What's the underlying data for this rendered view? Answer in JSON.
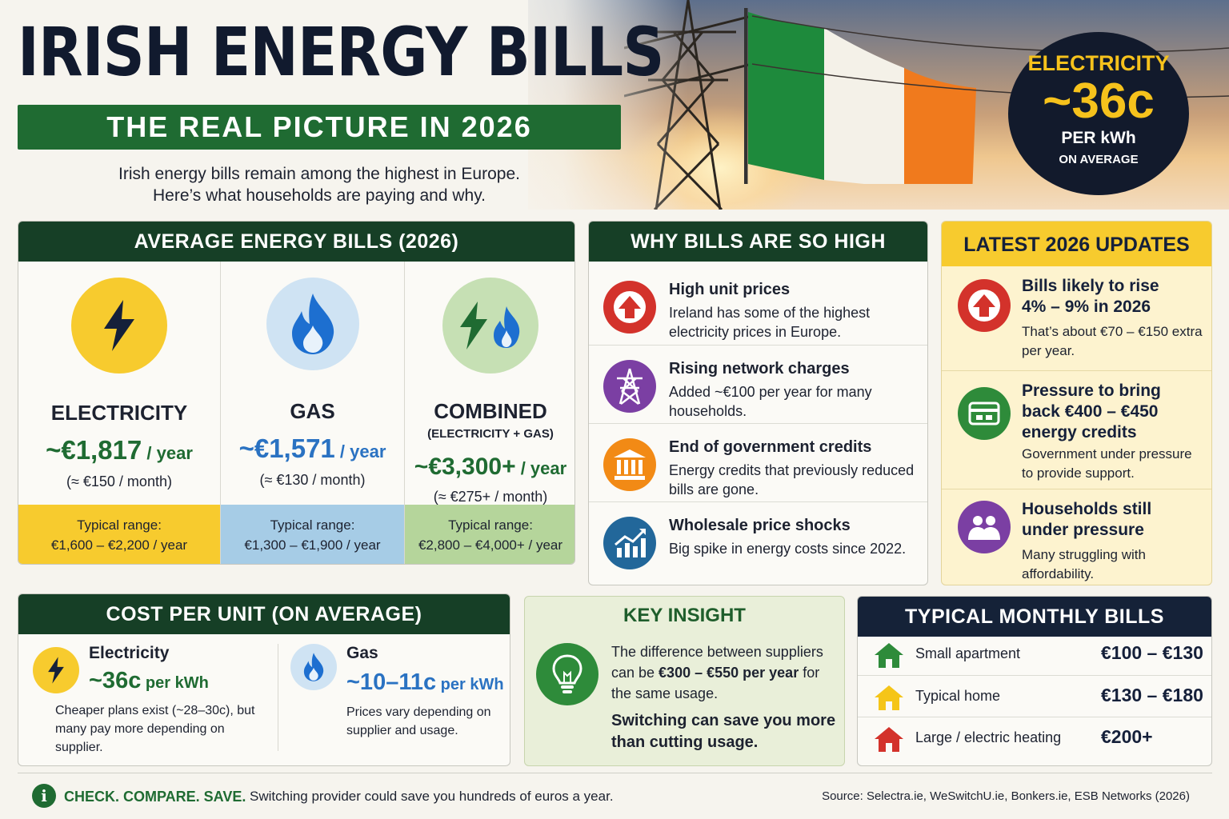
{
  "header": {
    "title": "IRISH ENERGY BILLS",
    "subtitle": "THE REAL PICTURE IN 2026",
    "intro_line1": "Irish energy bills remain among the highest in Europe.",
    "intro_line2": "Here’s what households are paying and why."
  },
  "badge": {
    "label": "ELECTRICITY",
    "value": "~36c",
    "unit": "PER kWh",
    "note": "ON AVERAGE"
  },
  "average_bills": {
    "heading": "AVERAGE ENERGY BILLS (2026)",
    "columns": [
      {
        "name": "ELECTRICITY",
        "sub": "",
        "value": "~€1,817",
        "per": " / year",
        "monthly": "(≈ €150 / month)",
        "range_label": "Typical range:",
        "range": "€1,600 – €2,200 / year",
        "accent": "#1f6b32",
        "range_bg": "#f7cb2e"
      },
      {
        "name": "GAS",
        "sub": "",
        "value": "~€1,571",
        "per": " / year",
        "monthly": "(≈ €130 / month)",
        "range_label": "Typical range:",
        "range": "€1,300 – €1,900 / year",
        "accent": "#2a72c2",
        "range_bg": "#a6cce6"
      },
      {
        "name": "COMBINED",
        "sub": "(ELECTRICITY + GAS)",
        "value": "~€3,300+",
        "per": " / year",
        "monthly": "(≈ €275+ / month)",
        "range_label": "Typical range:",
        "range": "€2,800 – €4,000+ / year",
        "accent": "#1f6b32",
        "range_bg": "#b5d59b"
      }
    ]
  },
  "why_high": {
    "heading": "WHY BILLS ARE SO HIGH",
    "items": [
      {
        "title": "High unit prices",
        "desc": "Ireland has some of the highest electricity prices in Europe.",
        "icon": "arrow-up-icon",
        "color": "#d3322b"
      },
      {
        "title": "Rising network charges",
        "desc": "Added ~€100 per year for many households.",
        "icon": "pylon-icon",
        "color": "#7b3fa3"
      },
      {
        "title": "End of government credits",
        "desc": "Energy credits that previously reduced bills are gone.",
        "icon": "government-building-icon",
        "color": "#f28a15"
      },
      {
        "title": "Wholesale price shocks",
        "desc": "Big spike in energy costs since 2022.",
        "icon": "chart-up-icon",
        "color": "#22679a"
      }
    ]
  },
  "updates": {
    "heading": "LATEST 2026 UPDATES",
    "items": [
      {
        "title": "Bills likely to rise 4% – 9% in 2026",
        "desc": "That’s about €70 – €150 extra per year.",
        "icon": "arrow-up-icon",
        "color": "#d3322b"
      },
      {
        "title": "Pressure to bring back €400 – €450 energy credits",
        "desc": "Government under pressure to provide support.",
        "icon": "cash-icon",
        "color": "#2e8b3a"
      },
      {
        "title": "Households still under pressure",
        "desc": "Many struggling with affordability.",
        "icon": "people-icon",
        "color": "#7b3fa3"
      }
    ]
  },
  "cost_per_unit": {
    "heading": "COST PER UNIT (ON AVERAGE)",
    "electricity": {
      "name": "Electricity",
      "value": "~36c",
      "unit": " per kWh",
      "desc": "Cheaper plans exist (~28–30c), but many pay more depending on supplier."
    },
    "gas": {
      "name": "Gas",
      "value": "~10–11c",
      "unit": " per kWh",
      "desc": "Prices vary depending on supplier and usage."
    }
  },
  "key_insight": {
    "heading": "KEY INSIGHT",
    "text": "The difference between suppliers can be €300 – €550 per year for the same usage.",
    "text_bold": "€300 – €550 per year",
    "text_before": "The difference between suppliers can be ",
    "text_after": " for the same usage.",
    "tip": "Switching can save you more than cutting usage."
  },
  "monthly": {
    "heading": "TYPICAL MONTHLY BILLS",
    "rows": [
      {
        "label": "Small apartment",
        "value": "€100 – €130",
        "color": "#2e8b3a"
      },
      {
        "label": "Typical home",
        "value": "€130 – €180",
        "color": "#f5c518"
      },
      {
        "label": "Large / electric heating",
        "value": "€200+",
        "color": "#d3322b"
      }
    ]
  },
  "footer": {
    "cta": "CHECK. COMPARE. SAVE.",
    "text": "Switching provider could save you hundreds of euros a year.",
    "source": "Source: Selectra.ie, WeSwitchU.ie, Bonkers.ie, ESB Networks (2026)"
  }
}
